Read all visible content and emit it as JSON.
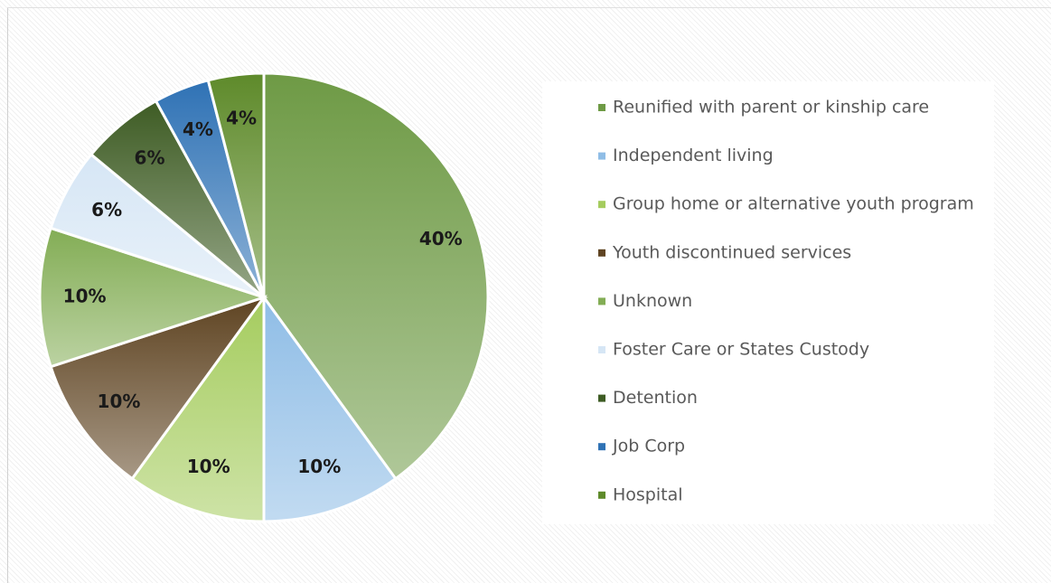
{
  "chart_data": {
    "type": "pie",
    "categories": [
      "Reunified with parent or kinship care",
      "Independent living",
      "Group home or alternative youth program",
      "Youth discontinued services",
      "Unknown",
      "Foster Care or States Custody",
      "Detention",
      "Job Corp",
      "Hospital"
    ],
    "values": [
      40,
      10,
      10,
      10,
      10,
      6,
      6,
      4,
      4
    ],
    "value_labels": [
      "40%",
      "10%",
      "10%",
      "10%",
      "10%",
      "6%",
      "6%",
      "4%",
      "4%"
    ],
    "colors": [
      "#6e9a45",
      "#8fbde6",
      "#a5cc5e",
      "#5f4422",
      "#83ad55",
      "#d6e6f5",
      "#3e5c24",
      "#2f72b5",
      "#5e8a2a"
    ],
    "legend": "right"
  }
}
